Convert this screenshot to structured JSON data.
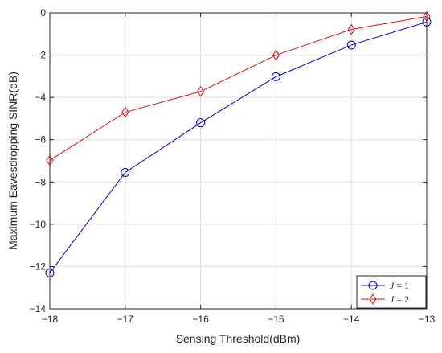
{
  "chart_data": {
    "type": "line",
    "title": "",
    "xlabel": "Sensing Threshold(dBm)",
    "ylabel": "Maximum Eavesdropping SINR(dB)",
    "xlim": [
      -18,
      -13
    ],
    "ylim": [
      -14,
      0
    ],
    "x_ticks": [
      -18,
      -17,
      -16,
      -15,
      -14,
      -13
    ],
    "y_ticks": [
      -14,
      -12,
      -10,
      -8,
      -6,
      -4,
      -2,
      0
    ],
    "x_tick_labels": [
      "−18",
      "−17",
      "−16",
      "−15",
      "−14",
      "−13"
    ],
    "y_tick_labels": [
      "−14",
      "−12",
      "−10",
      "−8",
      "−6",
      "−4",
      "−2",
      "0"
    ],
    "grid": true,
    "legend_position": "bottom-right",
    "x": [
      -18,
      -17,
      -16,
      -15,
      -14,
      -13
    ],
    "series": [
      {
        "name": "J = 1",
        "legend_var": "J",
        "legend_rest": " = 1",
        "color": "#0000cc",
        "marker": "circle",
        "values": [
          -12.3,
          -7.55,
          -5.2,
          -3.02,
          -1.52,
          -0.43
        ]
      },
      {
        "name": "J = 2",
        "legend_var": "J",
        "legend_rest": " = 2",
        "color": "#dd1111",
        "marker": "diamond",
        "values": [
          -6.98,
          -4.7,
          -3.72,
          -2.0,
          -0.78,
          -0.17
        ]
      }
    ]
  }
}
